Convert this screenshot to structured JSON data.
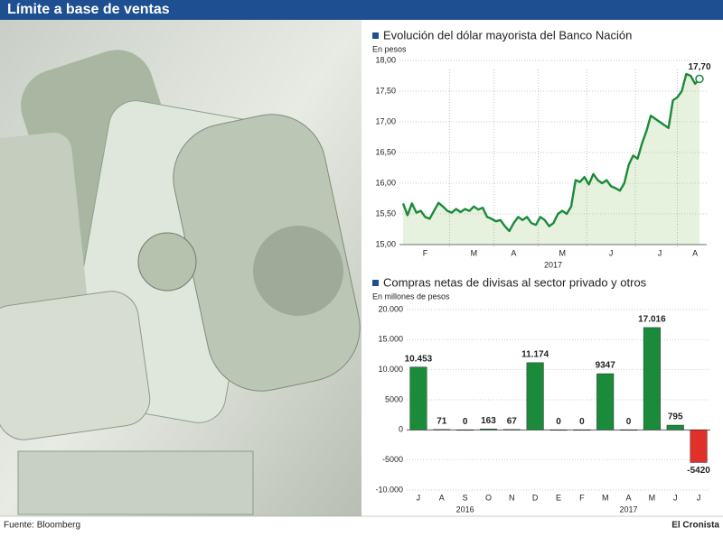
{
  "title": "Límite a base de ventas",
  "source": "Fuente: Bloomberg",
  "brand": "El Cronista",
  "chart_data": [
    {
      "type": "line",
      "title": "Evolución del dólar mayorista del Banco Nación",
      "subtitle": "En pesos",
      "xlabel": "2017",
      "color": "#1b8a3a",
      "fill_color": "#e6f1de",
      "grid": true,
      "ylim": [
        15,
        18
      ],
      "yticks": [
        {
          "value": 15,
          "label": "15,00"
        },
        {
          "value": 15.5,
          "label": "15,50"
        },
        {
          "value": 16,
          "label": "16,00"
        },
        {
          "value": 16.5,
          "label": "16,50"
        },
        {
          "value": 17,
          "label": "17,00"
        },
        {
          "value": 17.5,
          "label": "17,50"
        },
        {
          "value": 18,
          "label": "18,00"
        }
      ],
      "categories": [
        null,
        null,
        null,
        null,
        null,
        "F",
        null,
        null,
        null,
        null,
        null,
        null,
        null,
        null,
        null,
        null,
        "M",
        null,
        null,
        null,
        null,
        null,
        null,
        null,
        null,
        "A",
        null,
        null,
        null,
        null,
        null,
        null,
        null,
        null,
        null,
        null,
        "M",
        null,
        null,
        null,
        null,
        null,
        null,
        null,
        null,
        null,
        null,
        "J",
        null,
        null,
        null,
        null,
        null,
        null,
        null,
        null,
        null,
        null,
        "J",
        null,
        null,
        null,
        null,
        null,
        null,
        null,
        "A",
        null
      ],
      "values": [
        15.67,
        15.48,
        15.67,
        15.52,
        15.55,
        15.45,
        15.42,
        15.55,
        15.68,
        15.62,
        15.55,
        15.52,
        15.58,
        15.53,
        15.58,
        15.55,
        15.62,
        15.57,
        15.6,
        15.45,
        15.42,
        15.38,
        15.4,
        15.3,
        15.22,
        15.35,
        15.45,
        15.4,
        15.45,
        15.35,
        15.32,
        15.45,
        15.4,
        15.3,
        15.35,
        15.5,
        15.55,
        15.5,
        15.62,
        16.05,
        16.02,
        16.1,
        15.98,
        16.15,
        16.05,
        16.0,
        16.05,
        15.95,
        15.92,
        15.88,
        16.0,
        16.3,
        16.45,
        16.4,
        16.65,
        16.85,
        17.1,
        17.05,
        17.0,
        16.95,
        16.9,
        17.35,
        17.4,
        17.5,
        17.78,
        17.75,
        17.62,
        17.7
      ],
      "value_labels": [
        null,
        null,
        null,
        null,
        null,
        null,
        null,
        null,
        null,
        null,
        null,
        null,
        null,
        null,
        null,
        null,
        null,
        null,
        null,
        null,
        null,
        null,
        null,
        null,
        null,
        null,
        null,
        null,
        null,
        null,
        null,
        null,
        null,
        null,
        null,
        null,
        null,
        null,
        null,
        null,
        null,
        null,
        null,
        null,
        null,
        null,
        null,
        null,
        null,
        null,
        null,
        null,
        null,
        null,
        null,
        null,
        null,
        null,
        null,
        null,
        null,
        null,
        null,
        null,
        null,
        null,
        null,
        "17,70"
      ]
    },
    {
      "type": "bar",
      "title": "Compras netas de divisas al sector privado y otros",
      "subtitle": "En millones de pesos",
      "x_group_labels": [
        "2016",
        "2017"
      ],
      "grid": true,
      "ylim": [
        -10000,
        20000
      ],
      "yticks": [
        {
          "value": -10000,
          "label": "-10.000"
        },
        -5000,
        0,
        5000,
        {
          "value": 10000,
          "label": "10.000"
        },
        {
          "value": 15000,
          "label": "15.000"
        },
        {
          "value": 20000,
          "label": "20.000"
        }
      ],
      "categories": [
        "J",
        "A",
        "S",
        "O",
        "N",
        "D",
        "E",
        "F",
        "M",
        "A",
        "M",
        "J",
        "J"
      ],
      "values": [
        10453,
        71,
        0,
        163,
        67,
        11174,
        0,
        0,
        9347,
        0,
        17016,
        795,
        -5420
      ],
      "value_labels": [
        "10.453",
        "71",
        "0",
        "163",
        "67",
        "11.174",
        "0",
        "0",
        "9347",
        "0",
        "17.016",
        "795",
        "-5420"
      ],
      "colors": [
        "#1b8a3a",
        "#1b8a3a",
        "#1b8a3a",
        "#1b8a3a",
        "#1b8a3a",
        "#1b8a3a",
        "#1b8a3a",
        "#1b8a3a",
        "#1b8a3a",
        "#1b8a3a",
        "#1b8a3a",
        "#1b8a3a",
        "#e0302a"
      ]
    }
  ]
}
